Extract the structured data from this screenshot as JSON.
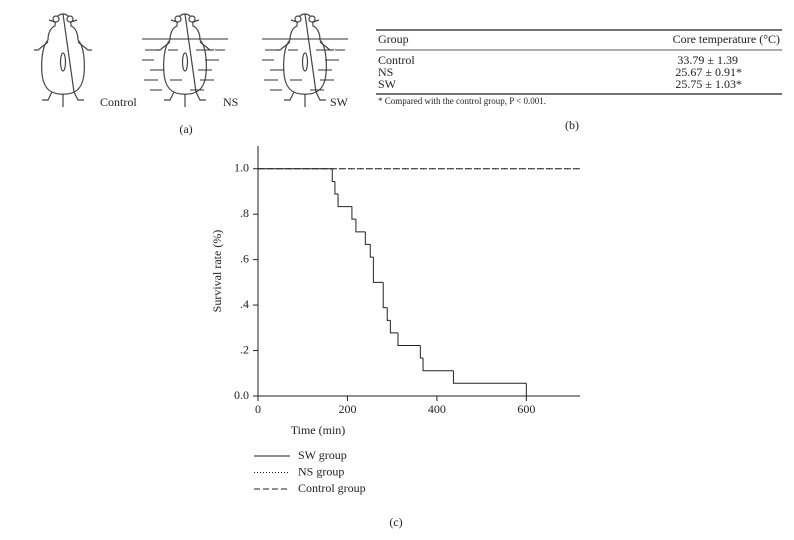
{
  "illustration": {
    "labels": [
      "Control",
      "NS",
      "SW"
    ],
    "panel_label": "(a)"
  },
  "table": {
    "header": [
      "Group",
      "Core temperature (°C)"
    ],
    "rows": [
      [
        "Control",
        "33.79 ± 1.39"
      ],
      [
        "NS",
        "25.67 ± 0.91*"
      ],
      [
        "SW",
        "25.75 ± 1.03*"
      ]
    ],
    "footnote": "* Compared with the control group, P < 0.001.",
    "panel_label": "(b)"
  },
  "chart_data": {
    "type": "step",
    "panel_label": "(c)",
    "x_label": "Time (min)",
    "y_label": "Survival rate (%)",
    "xlim": [
      0,
      720
    ],
    "ylim": [
      0,
      1.1
    ],
    "xticks": [
      0,
      200,
      400,
      600
    ],
    "yticks": [
      {
        "value": 0,
        "label": "0.0"
      },
      {
        "value": 0.2,
        "label": ".2"
      },
      {
        "value": 0.4,
        "label": ".4"
      },
      {
        "value": 0.6,
        "label": ".6"
      },
      {
        "value": 0.8,
        "label": ".8"
      },
      {
        "value": 1,
        "label": "1.0"
      }
    ],
    "series": [
      {
        "name": "SW group",
        "color": "#222",
        "dash": "solid",
        "x": [
          0,
          166,
          172,
          179,
          210,
          219,
          240,
          251,
          258,
          280,
          289,
          296,
          313,
          363,
          369,
          437,
          600
        ],
        "values": [
          1,
          0.944,
          0.889,
          0.833,
          0.778,
          0.722,
          0.667,
          0.611,
          0.5,
          0.389,
          0.333,
          0.278,
          0.222,
          0.167,
          0.111,
          0.056,
          0
        ]
      },
      {
        "name": "NS group",
        "color": "#222",
        "dash": "dotted",
        "x": [
          0,
          720
        ],
        "values": [
          1,
          1
        ]
      },
      {
        "name": "Control group",
        "color": "#222",
        "dash": "dashed",
        "x": [
          0,
          720
        ],
        "values": [
          1,
          1
        ]
      }
    ]
  }
}
